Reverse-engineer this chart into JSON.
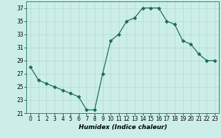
{
  "x": [
    0,
    1,
    2,
    3,
    4,
    5,
    6,
    7,
    8,
    9,
    10,
    11,
    12,
    13,
    14,
    15,
    16,
    17,
    18,
    19,
    20,
    21,
    22,
    23
  ],
  "y": [
    28,
    26,
    25.5,
    25,
    24.5,
    24,
    23.5,
    21.5,
    21.5,
    27,
    32,
    33,
    35,
    35.5,
    37,
    37,
    37,
    35,
    34.5,
    32,
    31.5,
    30,
    29,
    29
  ],
  "line_color": "#1a6b5a",
  "marker": "D",
  "marker_size": 2.5,
  "bg_color": "#cceee8",
  "grid_color": "#b0d8d0",
  "xlabel": "Humidex (Indice chaleur)",
  "xlim": [
    -0.5,
    23.5
  ],
  "ylim": [
    21,
    38
  ],
  "yticks": [
    21,
    23,
    25,
    27,
    29,
    31,
    33,
    35,
    37
  ],
  "xticks": [
    0,
    1,
    2,
    3,
    4,
    5,
    6,
    7,
    8,
    9,
    10,
    11,
    12,
    13,
    14,
    15,
    16,
    17,
    18,
    19,
    20,
    21,
    22,
    23
  ],
  "xlabel_fontsize": 6.5,
  "tick_fontsize": 5.5,
  "xlabel_fontweight": "bold"
}
